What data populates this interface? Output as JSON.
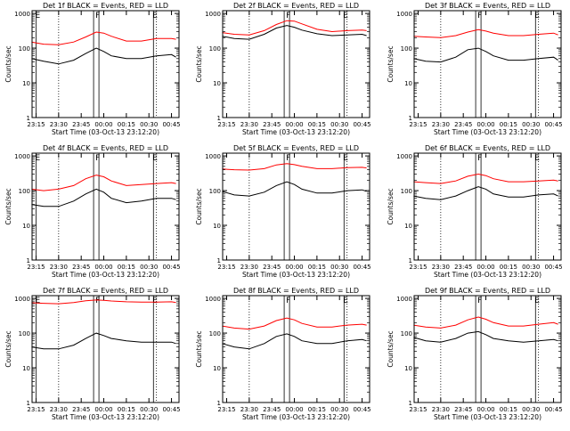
{
  "chart_data": [
    {
      "type": "line",
      "title": "Det 1f BLACK = Events, RED = LLD",
      "xlabel": "Start Time (03-Oct-13 23:12:20)",
      "ylabel": "Counts/sec",
      "yscale": "log",
      "ylim": [
        1,
        1200
      ],
      "xlim": [
        "23:12:20",
        "00:50:00"
      ],
      "x_ticks": [
        "23:15",
        "23:30",
        "23:45",
        "00:00",
        "00:15",
        "00:30",
        "00:45"
      ],
      "y_ticks": [
        "1",
        "10",
        "100",
        "1000"
      ],
      "markers": [
        {
          "label": "E",
          "time": "23:15"
        },
        {
          "label": "F",
          "time": "23:55"
        },
        {
          "label": "E",
          "time": "00:33"
        }
      ],
      "dotted_lines": [
        "23:30",
        "00:35"
      ],
      "series": [
        {
          "color": "#ff0000",
          "x": [
            "23:12",
            "23:20",
            "23:30",
            "23:40",
            "23:48",
            "23:55",
            "00:00",
            "00:05",
            "00:15",
            "00:25",
            "00:35",
            "00:45",
            "00:48"
          ],
          "y": [
            150,
            130,
            125,
            150,
            210,
            290,
            270,
            220,
            160,
            160,
            190,
            190,
            180
          ]
        },
        {
          "color": "#000000",
          "x": [
            "23:12",
            "23:20",
            "23:30",
            "23:40",
            "23:48",
            "23:55",
            "00:00",
            "00:05",
            "00:15",
            "00:25",
            "00:35",
            "00:45",
            "00:48"
          ],
          "y": [
            50,
            42,
            35,
            45,
            70,
            100,
            80,
            60,
            50,
            50,
            60,
            65,
            55
          ]
        }
      ]
    },
    {
      "type": "line",
      "title": "Det 2f BLACK = Events, RED = LLD",
      "xlabel": "Start Time (03-Oct-13 23:12:20)",
      "ylabel": "Counts/sec",
      "yscale": "log",
      "ylim": [
        1,
        1200
      ],
      "xlim": [
        "23:12:20",
        "00:50:00"
      ],
      "x_ticks": [
        "23:15",
        "23:30",
        "23:45",
        "00:00",
        "00:15",
        "00:30",
        "00:45"
      ],
      "y_ticks": [
        "1",
        "10",
        "100",
        "1000"
      ],
      "markers": [
        {
          "label": "F",
          "time": "23:55"
        },
        {
          "label": "E",
          "time": "00:33"
        }
      ],
      "dotted_lines": [
        "23:30",
        "00:35"
      ],
      "series": [
        {
          "color": "#ff0000",
          "x": [
            "23:12",
            "23:20",
            "23:30",
            "23:40",
            "23:48",
            "23:55",
            "00:00",
            "00:05",
            "00:15",
            "00:25",
            "00:35",
            "00:45",
            "00:48"
          ],
          "y": [
            280,
            250,
            240,
            320,
            480,
            620,
            600,
            500,
            350,
            300,
            320,
            330,
            320
          ]
        },
        {
          "color": "#000000",
          "x": [
            "23:12",
            "23:20",
            "23:30",
            "23:40",
            "23:48",
            "23:55",
            "00:00",
            "00:05",
            "00:15",
            "00:25",
            "00:35",
            "00:45",
            "00:48"
          ],
          "y": [
            220,
            190,
            180,
            250,
            380,
            450,
            400,
            330,
            260,
            230,
            240,
            250,
            230
          ]
        }
      ]
    },
    {
      "type": "line",
      "title": "Det 3f BLACK = Events, RED = LLD",
      "xlabel": "Start Time (03-Oct-13 23:12:20)",
      "ylabel": "Counts/sec",
      "yscale": "log",
      "ylim": [
        1,
        1200
      ],
      "xlim": [
        "23:12:20",
        "00:50:00"
      ],
      "x_ticks": [
        "23:15",
        "23:30",
        "23:45",
        "00:00",
        "00:15",
        "00:30",
        "00:45"
      ],
      "y_ticks": [
        "1",
        "10",
        "100",
        "1000"
      ],
      "markers": [
        {
          "label": "F",
          "time": "23:55"
        },
        {
          "label": "E",
          "time": "00:33"
        }
      ],
      "dotted_lines": [
        "23:30",
        "00:35"
      ],
      "series": [
        {
          "color": "#ff0000",
          "x": [
            "23:12",
            "23:20",
            "23:30",
            "23:40",
            "23:48",
            "23:55",
            "00:00",
            "00:05",
            "00:15",
            "00:25",
            "00:35",
            "00:45",
            "00:48"
          ],
          "y": [
            220,
            210,
            200,
            230,
            290,
            340,
            310,
            270,
            230,
            230,
            250,
            270,
            240
          ]
        },
        {
          "color": "#000000",
          "x": [
            "23:12",
            "23:20",
            "23:30",
            "23:40",
            "23:48",
            "23:55",
            "00:00",
            "00:05",
            "00:15",
            "00:25",
            "00:35",
            "00:45",
            "00:48"
          ],
          "y": [
            50,
            42,
            40,
            55,
            90,
            100,
            80,
            60,
            45,
            45,
            50,
            55,
            45
          ]
        }
      ]
    },
    {
      "type": "line",
      "title": "Det 4f BLACK = Events, RED = LLD",
      "xlabel": "Start Time (03-Oct-13 23:12:20)",
      "ylabel": "Counts/sec",
      "yscale": "log",
      "ylim": [
        1,
        1200
      ],
      "xlim": [
        "23:12:20",
        "00:50:00"
      ],
      "x_ticks": [
        "23:15",
        "23:30",
        "23:45",
        "00:00",
        "00:15",
        "00:30",
        "00:45"
      ],
      "y_ticks": [
        "1",
        "10",
        "100",
        "1000"
      ],
      "markers": [
        {
          "label": "E",
          "time": "23:15"
        },
        {
          "label": "F",
          "time": "23:55"
        },
        {
          "label": "E",
          "time": "00:33"
        }
      ],
      "dotted_lines": [
        "23:30",
        "00:35"
      ],
      "series": [
        {
          "color": "#ff0000",
          "x": [
            "23:12",
            "23:20",
            "23:30",
            "23:40",
            "23:48",
            "23:55",
            "00:00",
            "00:05",
            "00:15",
            "00:25",
            "00:35",
            "00:45",
            "00:48"
          ],
          "y": [
            110,
            100,
            110,
            140,
            220,
            280,
            250,
            190,
            140,
            150,
            160,
            170,
            160
          ]
        },
        {
          "color": "#000000",
          "x": [
            "23:12",
            "23:20",
            "23:30",
            "23:40",
            "23:48",
            "23:55",
            "00:00",
            "00:05",
            "00:15",
            "00:25",
            "00:35",
            "00:45",
            "00:48"
          ],
          "y": [
            40,
            35,
            35,
            50,
            80,
            110,
            90,
            60,
            45,
            50,
            60,
            60,
            55
          ]
        }
      ]
    },
    {
      "type": "line",
      "title": "Det 5f BLACK = Events, RED = LLD",
      "xlabel": "Start Time (03-Oct-13 23:12:20)",
      "ylabel": "Counts/sec",
      "yscale": "log",
      "ylim": [
        1,
        1200
      ],
      "xlim": [
        "23:12:20",
        "00:50:00"
      ],
      "x_ticks": [
        "23:15",
        "23:30",
        "23:45",
        "00:00",
        "00:15",
        "00:30",
        "00:45"
      ],
      "y_ticks": [
        "1",
        "10",
        "100",
        "1000"
      ],
      "markers": [
        {
          "label": "F",
          "time": "23:55"
        },
        {
          "label": "E",
          "time": "00:33"
        }
      ],
      "dotted_lines": [
        "23:30",
        "00:35"
      ],
      "series": [
        {
          "color": "#ff0000",
          "x": [
            "23:12",
            "23:20",
            "23:30",
            "23:40",
            "23:48",
            "23:55",
            "00:00",
            "00:05",
            "00:15",
            "00:25",
            "00:35",
            "00:45",
            "00:48"
          ],
          "y": [
            420,
            400,
            390,
            430,
            550,
            600,
            560,
            500,
            430,
            430,
            460,
            470,
            450
          ]
        },
        {
          "color": "#000000",
          "x": [
            "23:12",
            "23:20",
            "23:30",
            "23:40",
            "23:48",
            "23:55",
            "00:00",
            "00:05",
            "00:15",
            "00:25",
            "00:35",
            "00:45",
            "00:48"
          ],
          "y": [
            95,
            75,
            70,
            90,
            140,
            180,
            150,
            110,
            85,
            85,
            100,
            105,
            95
          ]
        }
      ]
    },
    {
      "type": "line",
      "title": "Det 6f BLACK = Events, RED = LLD",
      "xlabel": "Start Time (03-Oct-13 23:12:20)",
      "ylabel": "Counts/sec",
      "yscale": "log",
      "ylim": [
        1,
        1200
      ],
      "xlim": [
        "23:12:20",
        "00:50:00"
      ],
      "x_ticks": [
        "23:15",
        "23:30",
        "23:45",
        "00:00",
        "00:15",
        "00:30",
        "00:45"
      ],
      "y_ticks": [
        "1",
        "10",
        "100",
        "1000"
      ],
      "markers": [
        {
          "label": "F",
          "time": "23:55"
        },
        {
          "label": "E",
          "time": "00:33"
        }
      ],
      "dotted_lines": [
        "23:30",
        "00:35"
      ],
      "series": [
        {
          "color": "#ff0000",
          "x": [
            "23:12",
            "23:20",
            "23:30",
            "23:40",
            "23:48",
            "23:55",
            "00:00",
            "00:05",
            "00:15",
            "00:25",
            "00:35",
            "00:45",
            "00:48"
          ],
          "y": [
            180,
            170,
            160,
            190,
            260,
            300,
            270,
            220,
            180,
            180,
            190,
            200,
            190
          ]
        },
        {
          "color": "#000000",
          "x": [
            "23:12",
            "23:20",
            "23:30",
            "23:40",
            "23:48",
            "23:55",
            "00:00",
            "00:05",
            "00:15",
            "00:25",
            "00:35",
            "00:45",
            "00:48"
          ],
          "y": [
            70,
            60,
            55,
            70,
            100,
            130,
            110,
            80,
            65,
            65,
            75,
            80,
            70
          ]
        }
      ]
    },
    {
      "type": "line",
      "title": "Det 7f BLACK = Events, RED = LLD",
      "xlabel": "Start Time (03-Oct-13 23:12:20)",
      "ylabel": "Counts/sec",
      "yscale": "log",
      "ylim": [
        1,
        1200
      ],
      "xlim": [
        "23:12:20",
        "00:50:00"
      ],
      "x_ticks": [
        "23:15",
        "23:30",
        "23:45",
        "00:00",
        "00:15",
        "00:30",
        "00:45"
      ],
      "y_ticks": [
        "1",
        "10",
        "100",
        "1000"
      ],
      "markers": [
        {
          "label": "E",
          "time": "23:15"
        },
        {
          "label": "F",
          "time": "23:55"
        },
        {
          "label": "E",
          "time": "00:33"
        }
      ],
      "dotted_lines": [
        "23:30",
        "00:35"
      ],
      "series": [
        {
          "color": "#ff0000",
          "x": [
            "23:12",
            "23:20",
            "23:30",
            "23:40",
            "23:48",
            "23:55",
            "00:00",
            "00:05",
            "00:15",
            "00:25",
            "00:35",
            "00:45",
            "00:48"
          ],
          "y": [
            750,
            720,
            700,
            760,
            850,
            900,
            880,
            840,
            800,
            780,
            780,
            800,
            760
          ]
        },
        {
          "color": "#000000",
          "x": [
            "23:12",
            "23:20",
            "23:30",
            "23:40",
            "23:48",
            "23:55",
            "00:00",
            "00:05",
            "00:15",
            "00:25",
            "00:35",
            "00:45",
            "00:48"
          ],
          "y": [
            40,
            35,
            35,
            45,
            70,
            100,
            85,
            70,
            60,
            55,
            55,
            55,
            50
          ]
        }
      ]
    },
    {
      "type": "line",
      "title": "Det 8f BLACK = Events, RED = LLD",
      "xlabel": "Start Time (03-Oct-13 23:12:20)",
      "ylabel": "Counts/sec",
      "yscale": "log",
      "ylim": [
        1,
        1200
      ],
      "xlim": [
        "23:12:20",
        "00:50:00"
      ],
      "x_ticks": [
        "23:15",
        "23:30",
        "23:45",
        "00:00",
        "00:15",
        "00:30",
        "00:45"
      ],
      "y_ticks": [
        "1",
        "10",
        "100",
        "1000"
      ],
      "markers": [
        {
          "label": "F",
          "time": "23:55"
        },
        {
          "label": "E",
          "time": "00:33"
        }
      ],
      "dotted_lines": [
        "23:30",
        "00:35"
      ],
      "series": [
        {
          "color": "#ff0000",
          "x": [
            "23:12",
            "23:20",
            "23:30",
            "23:40",
            "23:48",
            "23:55",
            "00:00",
            "00:05",
            "00:15",
            "00:25",
            "00:35",
            "00:45",
            "00:48"
          ],
          "y": [
            160,
            140,
            130,
            160,
            230,
            270,
            240,
            190,
            150,
            150,
            170,
            180,
            170
          ]
        },
        {
          "color": "#000000",
          "x": [
            "23:12",
            "23:20",
            "23:30",
            "23:40",
            "23:48",
            "23:55",
            "00:00",
            "00:05",
            "00:15",
            "00:25",
            "00:35",
            "00:45",
            "00:48"
          ],
          "y": [
            50,
            40,
            35,
            50,
            80,
            95,
            80,
            60,
            50,
            50,
            60,
            65,
            60
          ]
        }
      ]
    },
    {
      "type": "line",
      "title": "Det 9f BLACK = Events, RED = LLD",
      "xlabel": "Start Time (03-Oct-13 23:12:20)",
      "ylabel": "Counts/sec",
      "yscale": "log",
      "ylim": [
        1,
        1200
      ],
      "xlim": [
        "23:12:20",
        "00:50:00"
      ],
      "x_ticks": [
        "23:15",
        "23:30",
        "23:45",
        "00:00",
        "00:15",
        "00:30",
        "00:45"
      ],
      "y_ticks": [
        "1",
        "10",
        "100",
        "1000"
      ],
      "markers": [
        {
          "label": "F",
          "time": "23:55"
        },
        {
          "label": "E",
          "time": "00:33"
        }
      ],
      "dotted_lines": [
        "23:30",
        "00:35"
      ],
      "series": [
        {
          "color": "#ff0000",
          "x": [
            "23:12",
            "23:20",
            "23:30",
            "23:40",
            "23:48",
            "23:55",
            "00:00",
            "00:05",
            "00:15",
            "00:25",
            "00:35",
            "00:45",
            "00:48"
          ],
          "y": [
            170,
            150,
            140,
            170,
            240,
            290,
            250,
            200,
            160,
            160,
            180,
            200,
            180
          ]
        },
        {
          "color": "#000000",
          "x": [
            "23:12",
            "23:20",
            "23:30",
            "23:40",
            "23:48",
            "23:55",
            "00:00",
            "00:05",
            "00:15",
            "00:25",
            "00:35",
            "00:45",
            "00:48"
          ],
          "y": [
            75,
            60,
            55,
            70,
            100,
            110,
            90,
            70,
            60,
            55,
            60,
            65,
            60
          ]
        }
      ]
    }
  ]
}
